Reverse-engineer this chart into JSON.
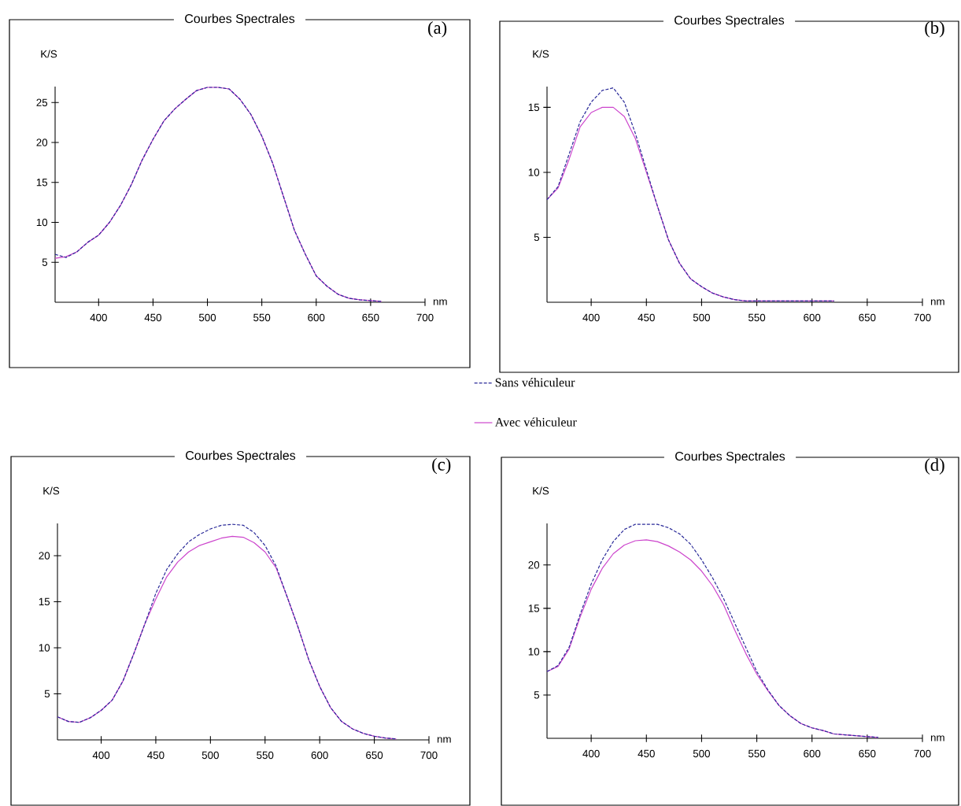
{
  "chart_data": [
    {
      "type": "line",
      "title": "Courbes Spectrales",
      "xlabel": "nm",
      "ylabel": "K/S",
      "annotations": [
        "(a)"
      ],
      "x": [
        360,
        370,
        380,
        390,
        400,
        410,
        420,
        430,
        440,
        450,
        460,
        470,
        480,
        490,
        500,
        510,
        520,
        530,
        540,
        550,
        560,
        570,
        580,
        590,
        600,
        610,
        620,
        630,
        640,
        650,
        660
      ],
      "xlim": [
        360,
        700
      ],
      "ylim": [
        0,
        27
      ],
      "xticks": [
        400,
        450,
        500,
        550,
        600,
        650,
        700
      ],
      "yticks": [
        5,
        10,
        15,
        20,
        25
      ],
      "legend": "bottom right",
      "series": [
        {
          "name": "Sans véhiculeur",
          "color": "#2b2b99",
          "line_style": "dashed",
          "values": [
            6.0,
            5.6,
            6.3,
            7.5,
            8.4,
            10.0,
            12.1,
            14.7,
            17.8,
            20.4,
            22.7,
            24.2,
            25.4,
            26.5,
            26.9,
            26.9,
            26.7,
            25.4,
            23.5,
            20.8,
            17.4,
            13.2,
            9.0,
            6.0,
            3.3,
            2.0,
            1.0,
            0.5,
            0.3,
            0.2,
            0.1
          ]
        },
        {
          "name": "Avec véhiculeur",
          "color": "#cc44cc",
          "line_style": "solid",
          "values": [
            5.5,
            5.7,
            6.3,
            7.5,
            8.4,
            10.0,
            12.1,
            14.7,
            17.8,
            20.4,
            22.7,
            24.2,
            25.4,
            26.5,
            26.9,
            26.9,
            26.7,
            25.4,
            23.5,
            20.8,
            17.4,
            13.2,
            9.0,
            6.0,
            3.3,
            2.0,
            1.0,
            0.5,
            0.3,
            0.2,
            0.1
          ]
        }
      ]
    },
    {
      "type": "line",
      "title": "Courbes Spectrales",
      "xlabel": "nm",
      "ylabel": "K/S",
      "annotations": [
        "(b)"
      ],
      "x": [
        360,
        370,
        380,
        390,
        400,
        410,
        420,
        430,
        440,
        450,
        460,
        470,
        480,
        490,
        500,
        510,
        520,
        530,
        540,
        550,
        560,
        570,
        580,
        590,
        600,
        610,
        620
      ],
      "xlim": [
        360,
        700
      ],
      "ylim": [
        0,
        16.6
      ],
      "xticks": [
        400,
        450,
        500,
        550,
        600,
        650,
        700
      ],
      "yticks": [
        5,
        10,
        15
      ],
      "series": [
        {
          "color": "#2b2b99",
          "line_style": "dashed",
          "values": [
            7.9,
            8.9,
            11.4,
            13.9,
            15.4,
            16.3,
            16.5,
            15.4,
            13.0,
            10.2,
            7.4,
            4.8,
            3.0,
            1.8,
            1.2,
            0.7,
            0.4,
            0.2,
            0.1,
            0.1,
            0.1,
            0.1,
            0.1,
            0.1,
            0.1,
            0.1,
            0.1
          ]
        },
        {
          "color": "#cc44cc",
          "line_style": "solid",
          "values": [
            7.9,
            8.8,
            11.0,
            13.5,
            14.6,
            15.0,
            15.0,
            14.3,
            12.6,
            10.0,
            7.4,
            4.8,
            3.0,
            1.8,
            1.2,
            0.7,
            0.4,
            0.2,
            0.1,
            0.1,
            0.1,
            0.1,
            0.1,
            0.1,
            0.1,
            0.1,
            0.1
          ]
        }
      ]
    },
    {
      "type": "line",
      "title": "Courbes Spectrales",
      "xlabel": "nm",
      "ylabel": "K/S",
      "annotations": [
        "(c)"
      ],
      "x": [
        360,
        370,
        380,
        390,
        400,
        410,
        420,
        430,
        440,
        450,
        460,
        470,
        480,
        490,
        500,
        510,
        520,
        530,
        540,
        550,
        560,
        570,
        580,
        590,
        600,
        610,
        620,
        630,
        640,
        650,
        660,
        670
      ],
      "xlim": [
        360,
        700
      ],
      "ylim": [
        0,
        23.5
      ],
      "xticks": [
        400,
        450,
        500,
        550,
        600,
        650,
        700
      ],
      "yticks": [
        5,
        10,
        15,
        20
      ],
      "series": [
        {
          "color": "#2b2b99",
          "line_style": "dashed",
          "values": [
            2.5,
            2.0,
            1.9,
            2.4,
            3.2,
            4.3,
            6.4,
            9.4,
            12.6,
            15.9,
            18.5,
            20.2,
            21.5,
            22.3,
            22.9,
            23.3,
            23.4,
            23.3,
            22.5,
            21.1,
            18.9,
            15.6,
            12.3,
            8.7,
            5.8,
            3.5,
            2.0,
            1.2,
            0.7,
            0.4,
            0.2,
            0.1
          ]
        },
        {
          "color": "#cc44cc",
          "line_style": "solid",
          "values": [
            2.5,
            2.0,
            1.9,
            2.4,
            3.2,
            4.3,
            6.4,
            9.4,
            12.6,
            15.3,
            17.7,
            19.3,
            20.4,
            21.1,
            21.5,
            21.9,
            22.1,
            22.0,
            21.4,
            20.4,
            18.7,
            15.6,
            12.3,
            8.7,
            5.8,
            3.5,
            2.0,
            1.2,
            0.7,
            0.4,
            0.2,
            0.1
          ]
        }
      ]
    },
    {
      "type": "line",
      "title": "Courbes Spectrales",
      "xlabel": "nm",
      "ylabel": "K/S",
      "annotations": [
        "(d)"
      ],
      "x": [
        360,
        370,
        380,
        390,
        400,
        410,
        420,
        430,
        440,
        450,
        460,
        470,
        480,
        490,
        500,
        510,
        520,
        530,
        540,
        550,
        560,
        570,
        580,
        590,
        600,
        610,
        620,
        630,
        640,
        650,
        660
      ],
      "xlim": [
        360,
        700
      ],
      "ylim": [
        0,
        24.8
      ],
      "xticks": [
        400,
        450,
        500,
        550,
        600,
        650,
        700
      ],
      "yticks": [
        5,
        10,
        15,
        20
      ],
      "series": [
        {
          "color": "#2b2b99",
          "line_style": "dashed",
          "values": [
            7.7,
            8.4,
            10.5,
            14.3,
            17.8,
            20.6,
            22.7,
            24.1,
            24.7,
            24.7,
            24.7,
            24.3,
            23.6,
            22.4,
            20.6,
            18.5,
            16.1,
            13.3,
            10.5,
            7.7,
            5.6,
            3.8,
            2.6,
            1.7,
            1.2,
            0.9,
            0.5,
            0.4,
            0.3,
            0.2,
            0.1
          ]
        },
        {
          "color": "#cc44cc",
          "line_style": "solid",
          "values": [
            7.7,
            8.3,
            10.3,
            14.0,
            17.2,
            19.6,
            21.3,
            22.3,
            22.8,
            22.9,
            22.7,
            22.2,
            21.5,
            20.6,
            19.3,
            17.6,
            15.4,
            12.5,
            9.8,
            7.4,
            5.5,
            3.8,
            2.6,
            1.7,
            1.2,
            0.9,
            0.5,
            0.4,
            0.3,
            0.2,
            0.1
          ]
        }
      ]
    }
  ]
}
